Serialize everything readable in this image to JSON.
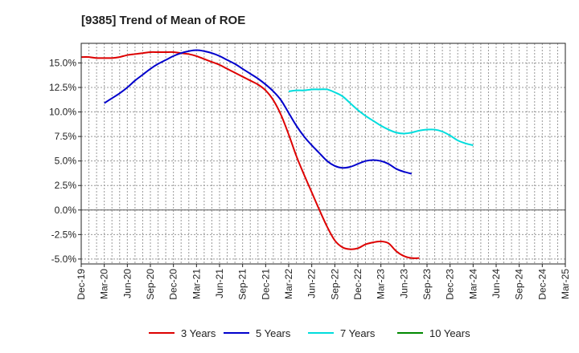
{
  "chart_data": {
    "type": "line",
    "title": "[9385]  Trend of Mean of ROE",
    "xlabel": "",
    "ylabel": "",
    "ylim": [
      -5.5,
      17.0
    ],
    "grid": true,
    "legend_position": "bottom",
    "x_ticks": [
      "Dec-19",
      "Mar-20",
      "Jun-20",
      "Sep-20",
      "Dec-20",
      "Mar-21",
      "Jun-21",
      "Sep-21",
      "Dec-21",
      "Mar-22",
      "Jun-22",
      "Sep-22",
      "Dec-22",
      "Mar-23",
      "Jun-23",
      "Sep-23",
      "Dec-23",
      "Mar-24",
      "Jun-24",
      "Sep-24",
      "Dec-24",
      "Mar-25"
    ],
    "y_ticks": [
      {
        "value": 15.0,
        "label": "15.0%"
      },
      {
        "value": 12.5,
        "label": "12.5%"
      },
      {
        "value": 10.0,
        "label": "10.0%"
      },
      {
        "value": 7.5,
        "label": "7.5%"
      },
      {
        "value": 5.0,
        "label": "5.0%"
      },
      {
        "value": 2.5,
        "label": "2.5%"
      },
      {
        "value": 0.0,
        "label": "0.0%"
      },
      {
        "value": -2.5,
        "label": "-2.5%"
      },
      {
        "value": -5.0,
        "label": "-5.0%"
      }
    ],
    "series": [
      {
        "name": "3 Years",
        "color": "#dd0000",
        "start_index": 0,
        "values": [
          15.6,
          15.6,
          15.5,
          15.5,
          15.5,
          15.6,
          15.8,
          15.9,
          16.0,
          16.1,
          16.1,
          16.1,
          16.1,
          16.0,
          15.9,
          15.7,
          15.4,
          15.1,
          14.8,
          14.4,
          14.0,
          13.6,
          13.2,
          12.8,
          12.2,
          11.2,
          9.7,
          7.7,
          5.5,
          3.6,
          1.8,
          0.0,
          -1.7,
          -3.1,
          -3.8,
          -4.0,
          -3.9,
          -3.5,
          -3.3,
          -3.2,
          -3.4,
          -4.2,
          -4.7,
          -4.9,
          -4.9
        ]
      },
      {
        "name": "5 Years",
        "color": "#0000cc",
        "start_index": 3,
        "values": [
          10.9,
          11.4,
          11.9,
          12.5,
          13.2,
          13.8,
          14.4,
          14.9,
          15.3,
          15.7,
          16.0,
          16.2,
          16.3,
          16.2,
          16.0,
          15.7,
          15.3,
          14.9,
          14.4,
          13.9,
          13.4,
          12.8,
          12.1,
          11.2,
          9.9,
          8.6,
          7.5,
          6.6,
          5.8,
          5.0,
          4.5,
          4.3,
          4.4,
          4.7,
          5.0,
          5.1,
          5.0,
          4.7,
          4.2,
          3.9,
          3.7
        ]
      },
      {
        "name": "7 Years",
        "color": "#00dddd",
        "start_index": 27,
        "values": [
          12.1,
          12.2,
          12.2,
          12.3,
          12.3,
          12.3,
          12.0,
          11.6,
          10.9,
          10.2,
          9.6,
          9.1,
          8.6,
          8.2,
          7.9,
          7.8,
          7.9,
          8.1,
          8.2,
          8.2,
          8.0,
          7.6,
          7.1,
          6.8,
          6.6
        ]
      },
      {
        "name": "10 Years",
        "color": "#008800",
        "start_index": 0,
        "values": []
      }
    ]
  }
}
